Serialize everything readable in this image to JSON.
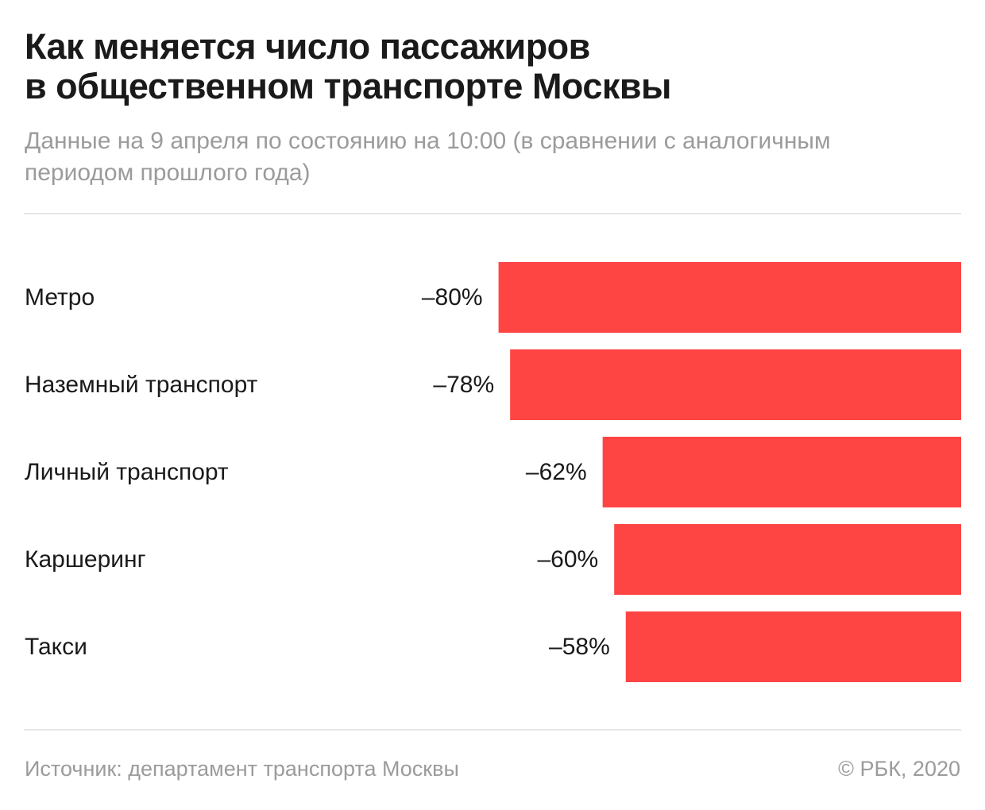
{
  "header": {
    "title_line1": "Как меняется число пассажиров",
    "title_line2": "в общественном транспорте Москвы",
    "subtitle_line1": "Данные на 9 апреля по состоянию на 10:00 (в сравнении с аналогичным",
    "subtitle_line2": "периодом прошлого года)"
  },
  "footer": {
    "source": "Источник: департамент транспорта Москвы",
    "copyright": "© РБК, 2020"
  },
  "colors": {
    "bar": "#ff4444",
    "text": "#1a1a1a",
    "muted": "#9b9b9b",
    "rule": "#e6e6e6"
  },
  "chart_data": {
    "type": "bar",
    "orientation": "horizontal",
    "categories": [
      "Метро",
      "Наземный транспорт",
      "Личный транспорт",
      "Каршеринг",
      "Такси"
    ],
    "values": [
      -80,
      -78,
      -62,
      -60,
      -58
    ],
    "value_labels": [
      "–80%",
      "–78%",
      "–62%",
      "–60%",
      "–58%"
    ],
    "grid": false,
    "legend": "none"
  }
}
